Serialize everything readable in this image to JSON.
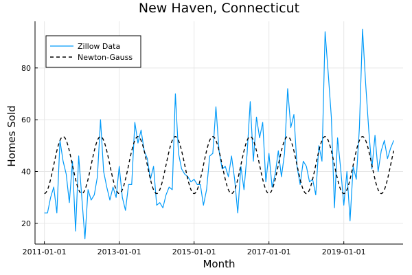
{
  "chart_data": {
    "type": "line",
    "title": "New Haven, Connecticut",
    "xlabel": "Month",
    "ylabel": "Homes Sold",
    "x_range": [
      "2010-10-01",
      "2020-08-01"
    ],
    "xlim": [
      "2010-10-01",
      "2020-08-01"
    ],
    "ylim": [
      12,
      98
    ],
    "x_ticks": [
      "2011-01-01",
      "2013-01-01",
      "2015-01-01",
      "2017-01-01",
      "2019-01-01"
    ],
    "y_ticks": [
      20,
      40,
      60,
      80
    ],
    "grid": true,
    "legend_position": "top-left",
    "series": [
      {
        "name": "Zillow Data",
        "color": "#009af9",
        "style": "solid",
        "x": [
          "2011-01-01",
          "2011-02-01",
          "2011-03-01",
          "2011-04-01",
          "2011-05-01",
          "2011-06-01",
          "2011-07-01",
          "2011-08-01",
          "2011-09-01",
          "2011-10-01",
          "2011-11-01",
          "2011-12-01",
          "2012-01-01",
          "2012-02-01",
          "2012-03-01",
          "2012-04-01",
          "2012-05-01",
          "2012-06-01",
          "2012-07-01",
          "2012-08-01",
          "2012-09-01",
          "2012-10-01",
          "2012-11-01",
          "2012-12-01",
          "2013-01-01",
          "2013-02-01",
          "2013-03-01",
          "2013-04-01",
          "2013-05-01",
          "2013-06-01",
          "2013-07-01",
          "2013-08-01",
          "2013-09-01",
          "2013-10-01",
          "2013-11-01",
          "2013-12-01",
          "2014-01-01",
          "2014-02-01",
          "2014-03-01",
          "2014-04-01",
          "2014-05-01",
          "2014-06-01",
          "2014-07-01",
          "2014-08-01",
          "2014-09-01",
          "2014-10-01",
          "2014-11-01",
          "2014-12-01",
          "2015-01-01",
          "2015-02-01",
          "2015-03-01",
          "2015-04-01",
          "2015-05-01",
          "2015-06-01",
          "2015-07-01",
          "2015-08-01",
          "2015-09-01",
          "2015-10-01",
          "2015-11-01",
          "2015-12-01",
          "2016-01-01",
          "2016-02-01",
          "2016-03-01",
          "2016-04-01",
          "2016-05-01",
          "2016-06-01",
          "2016-07-01",
          "2016-08-01",
          "2016-09-01",
          "2016-10-01",
          "2016-11-01",
          "2016-12-01",
          "2017-01-01",
          "2017-02-01",
          "2017-03-01",
          "2017-04-01",
          "2017-05-01",
          "2017-06-01",
          "2017-07-01",
          "2017-08-01",
          "2017-09-01",
          "2017-10-01",
          "2017-11-01",
          "2017-12-01",
          "2018-01-01",
          "2018-02-01",
          "2018-03-01",
          "2018-04-01",
          "2018-05-01",
          "2018-06-01",
          "2018-07-01",
          "2018-08-01",
          "2018-09-01",
          "2018-10-01",
          "2018-11-01",
          "2018-12-01",
          "2019-01-01",
          "2019-02-01",
          "2019-03-01",
          "2019-04-01",
          "2019-05-01",
          "2019-06-01",
          "2019-07-01",
          "2019-08-01",
          "2019-09-01",
          "2019-10-01",
          "2019-11-01",
          "2019-12-01",
          "2020-01-01",
          "2020-02-01",
          "2020-03-01",
          "2020-04-01",
          "2020-05-01"
        ],
        "y": [
          24,
          24,
          30,
          34,
          24,
          52,
          44,
          39,
          28,
          44,
          17,
          46,
          30,
          14,
          33,
          29,
          31,
          38,
          60,
          40,
          34,
          29,
          34,
          30,
          42,
          30,
          25,
          35,
          35,
          59,
          51,
          56,
          48,
          45,
          37,
          42,
          27,
          28,
          26,
          31,
          34,
          33,
          70,
          47,
          41,
          39,
          38,
          36,
          37,
          35,
          35,
          27,
          33,
          46,
          47,
          65,
          48,
          41,
          42,
          38,
          46,
          37,
          24,
          42,
          33,
          47,
          67,
          44,
          61,
          53,
          59,
          36,
          47,
          34,
          39,
          48,
          38,
          47,
          72,
          57,
          62,
          42,
          35,
          44,
          42,
          36,
          37,
          31,
          50,
          44,
          94,
          78,
          61,
          26,
          53,
          41,
          27,
          40,
          21,
          42,
          37,
          57,
          95,
          74,
          56,
          41,
          54,
          40,
          48,
          52,
          45,
          49,
          52
        ]
      },
      {
        "name": "Newton-Gauss",
        "color": "#000000",
        "style": "dashed",
        "model": {
          "form": "sinusoid",
          "mean": 42.5,
          "amplitude": 11,
          "period_months": 12,
          "peak_month": 7,
          "start": "2011-01-01",
          "end": "2020-05-01"
        }
      }
    ]
  }
}
